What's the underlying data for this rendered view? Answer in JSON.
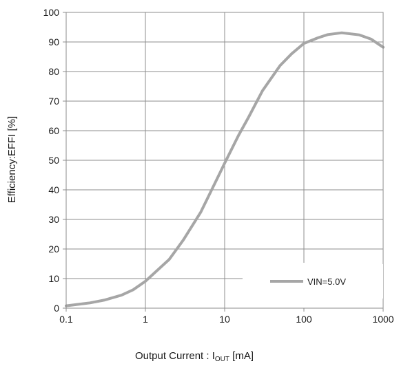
{
  "chart_data": {
    "type": "line",
    "title": "",
    "xlabel": {
      "main": "Output  Current : I",
      "sub": "OUT",
      "unit": " [mA]"
    },
    "ylabel": "Efficiency:EFFI [%]",
    "xscale": "log",
    "xlim": [
      0.1,
      1000
    ],
    "ylim": [
      0,
      100
    ],
    "x_ticks": [
      0.1,
      1,
      10,
      100,
      1000
    ],
    "x_tick_labels": [
      "0.1",
      "1",
      "10",
      "100",
      "1000"
    ],
    "y_ticks": [
      0,
      10,
      20,
      30,
      40,
      50,
      60,
      70,
      80,
      90,
      100
    ],
    "y_tick_labels": [
      "0",
      "10",
      "20",
      "30",
      "40",
      "50",
      "60",
      "70",
      "80",
      "90",
      "100"
    ],
    "grid": "major",
    "legend_position": "bottom-right",
    "series": [
      {
        "name": "VIN=5.0V",
        "color": "#a6a6a6",
        "x": [
          0.1,
          0.2,
          0.3,
          0.5,
          0.7,
          1,
          2,
          3,
          5,
          7,
          10,
          15,
          20,
          30,
          50,
          70,
          100,
          150,
          200,
          300,
          500,
          700,
          1000
        ],
        "y": [
          0.8,
          1.8,
          2.7,
          4.4,
          6.2,
          9.1,
          16.5,
          23,
          32.5,
          40.5,
          49,
          58.5,
          64.5,
          73.5,
          82,
          86,
          89.5,
          91.4,
          92.5,
          93.1,
          92.4,
          91,
          88.2
        ]
      }
    ]
  }
}
